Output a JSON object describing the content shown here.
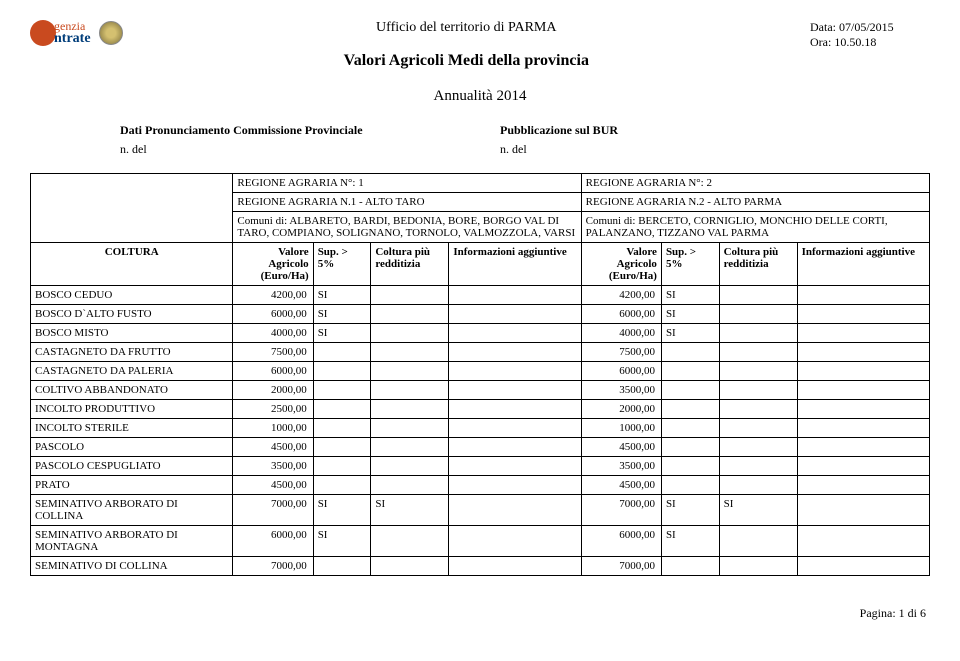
{
  "logo": {
    "top": "genzia",
    "bot": "ntrate"
  },
  "header": {
    "line1": "Ufficio del territorio di  PARMA",
    "line2": "Valori Agricoli Medi della provincia"
  },
  "meta": {
    "data": "Data: 07/05/2015",
    "ora": "Ora: 10.50.18"
  },
  "subtitle": "Annualità  2014",
  "info": {
    "left_bold": "Dati Pronunciamento Commissione Provinciale",
    "right_bold": "Pubblicazione sul BUR",
    "left_small": "n.  del",
    "right_small": "n.  del"
  },
  "regions": [
    {
      "title": "REGIONE AGRARIA N°: 1",
      "name": "REGIONE AGRARIA N.1 - ALTO TARO",
      "comuni": "Comuni di: ALBARETO, BARDI, BEDONIA, BORE, BORGO VAL DI TARO, COMPIANO, SOLIGNANO, TORNOLO, VALMOZZOLA, VARSI"
    },
    {
      "title": "REGIONE AGRARIA N°: 2",
      "name": "REGIONE AGRARIA N.2 - ALTO PARMA",
      "comuni": "Comuni di: BERCETO, CORNIGLIO, MONCHIO DELLE CORTI, PALANZANO, TIZZANO VAL PARMA"
    }
  ],
  "columns": {
    "coltura": "COLTURA",
    "valore": "Valore Agricolo (Euro/Ha)",
    "sup": "Sup. > 5%",
    "red": "Coltura più redditizia",
    "info": "Informazioni aggiuntive"
  },
  "rows": [
    {
      "c": "BOSCO CEDUO",
      "v1": "4200,00",
      "s1": "SI",
      "r1": "",
      "i1": "",
      "v2": "4200,00",
      "s2": "SI",
      "r2": "",
      "i2": ""
    },
    {
      "c": "BOSCO D`ALTO FUSTO",
      "v1": "6000,00",
      "s1": "SI",
      "r1": "",
      "i1": "",
      "v2": "6000,00",
      "s2": "SI",
      "r2": "",
      "i2": ""
    },
    {
      "c": "BOSCO MISTO",
      "v1": "4000,00",
      "s1": "SI",
      "r1": "",
      "i1": "",
      "v2": "4000,00",
      "s2": "SI",
      "r2": "",
      "i2": ""
    },
    {
      "c": "CASTAGNETO DA FRUTTO",
      "v1": "7500,00",
      "s1": "",
      "r1": "",
      "i1": "",
      "v2": "7500,00",
      "s2": "",
      "r2": "",
      "i2": ""
    },
    {
      "c": "CASTAGNETO DA PALERIA",
      "v1": "6000,00",
      "s1": "",
      "r1": "",
      "i1": "",
      "v2": "6000,00",
      "s2": "",
      "r2": "",
      "i2": ""
    },
    {
      "c": "COLTIVO ABBANDONATO",
      "v1": "2000,00",
      "s1": "",
      "r1": "",
      "i1": "",
      "v2": "3500,00",
      "s2": "",
      "r2": "",
      "i2": ""
    },
    {
      "c": "INCOLTO PRODUTTIVO",
      "v1": "2500,00",
      "s1": "",
      "r1": "",
      "i1": "",
      "v2": "2000,00",
      "s2": "",
      "r2": "",
      "i2": ""
    },
    {
      "c": "INCOLTO STERILE",
      "v1": "1000,00",
      "s1": "",
      "r1": "",
      "i1": "",
      "v2": "1000,00",
      "s2": "",
      "r2": "",
      "i2": ""
    },
    {
      "c": "PASCOLO",
      "v1": "4500,00",
      "s1": "",
      "r1": "",
      "i1": "",
      "v2": "4500,00",
      "s2": "",
      "r2": "",
      "i2": ""
    },
    {
      "c": "PASCOLO CESPUGLIATO",
      "v1": "3500,00",
      "s1": "",
      "r1": "",
      "i1": "",
      "v2": "3500,00",
      "s2": "",
      "r2": "",
      "i2": ""
    },
    {
      "c": "PRATO",
      "v1": "4500,00",
      "s1": "",
      "r1": "",
      "i1": "",
      "v2": "4500,00",
      "s2": "",
      "r2": "",
      "i2": ""
    },
    {
      "c": "SEMINATIVO ARBORATO DI COLLINA",
      "v1": "7000,00",
      "s1": "SI",
      "r1": "SI",
      "i1": "",
      "v2": "7000,00",
      "s2": "SI",
      "r2": "SI",
      "i2": ""
    },
    {
      "c": "SEMINATIVO ARBORATO DI MONTAGNA",
      "v1": "6000,00",
      "s1": "SI",
      "r1": "",
      "i1": "",
      "v2": "6000,00",
      "s2": "SI",
      "r2": "",
      "i2": ""
    },
    {
      "c": "SEMINATIVO DI COLLINA",
      "v1": "7000,00",
      "s1": "",
      "r1": "",
      "i1": "",
      "v2": "7000,00",
      "s2": "",
      "r2": "",
      "i2": ""
    }
  ],
  "footer": "Pagina: 1 di 6",
  "style": {
    "accent_color": "#c94a1f",
    "brand_color": "#003d7a",
    "border_color": "#000000",
    "background_color": "#ffffff"
  }
}
